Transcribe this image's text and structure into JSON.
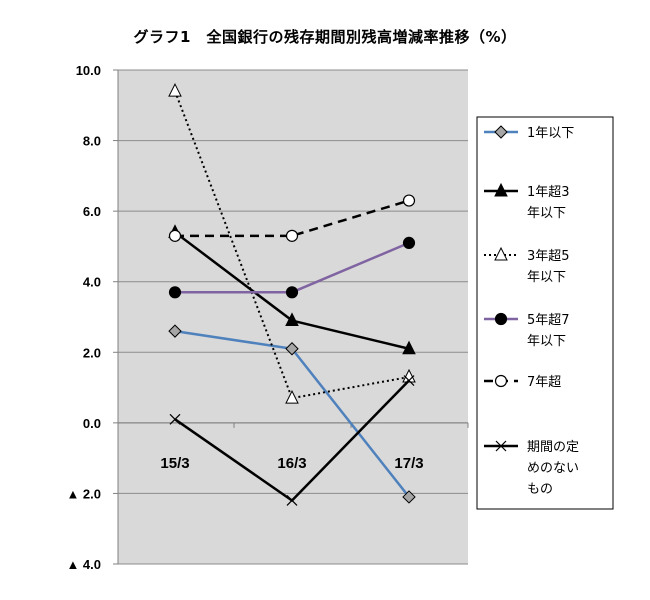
{
  "title": "グラフ1　全国銀行の残存期間別残高増減率推移（%）",
  "chart_data": {
    "type": "line",
    "categories": [
      "15/3",
      "16/3",
      "17/3"
    ],
    "ylim": [
      -4.0,
      10.0
    ],
    "yticks": [
      10.0,
      8.0,
      6.0,
      4.0,
      2.0,
      0.0,
      -2.0,
      -4.0
    ],
    "ytick_labels": [
      "10.0",
      "8.0",
      "6.0",
      "4.0",
      "2.0",
      "0.0",
      "▲ 2.0",
      "▲ 4.0"
    ],
    "grid": true,
    "plot_background": "#d9d9d9",
    "legend_position": "right",
    "series": [
      {
        "name": "1年以下",
        "label_lines": [
          "1年以下"
        ],
        "values": [
          2.6,
          2.1,
          -2.1
        ],
        "color": "#4f81bd",
        "dash": "solid",
        "marker": "diamond",
        "marker_fill": "#a6a6a6"
      },
      {
        "name": "1年超3年以下",
        "label_lines": [
          "1年超3",
          "年以下"
        ],
        "values": [
          5.4,
          2.9,
          2.1
        ],
        "color": "#000000",
        "dash": "solid",
        "marker": "triangle",
        "marker_fill": "#000000"
      },
      {
        "name": "3年超5年以下",
        "label_lines": [
          "3年超5",
          "年以下"
        ],
        "values": [
          9.4,
          0.7,
          1.3
        ],
        "color": "#000000",
        "dash": "dotted",
        "marker": "triangle",
        "marker_fill": "#ffffff"
      },
      {
        "name": "5年超7年以下",
        "label_lines": [
          "5年超7",
          "年以下"
        ],
        "values": [
          3.7,
          3.7,
          5.1
        ],
        "color": "#8064a2",
        "dash": "solid",
        "marker": "circle",
        "marker_fill": "#000000"
      },
      {
        "name": "7年超",
        "label_lines": [
          "7年超"
        ],
        "values": [
          5.3,
          5.3,
          6.3
        ],
        "color": "#000000",
        "dash": "dashed",
        "marker": "circle",
        "marker_fill": "#ffffff"
      },
      {
        "name": "期間の定めのないもの",
        "label_lines": [
          "期間の定",
          "めのない",
          "もの"
        ],
        "values": [
          0.1,
          -2.2,
          1.2
        ],
        "color": "#000000",
        "dash": "solid",
        "marker": "x",
        "marker_fill": "none"
      }
    ]
  }
}
